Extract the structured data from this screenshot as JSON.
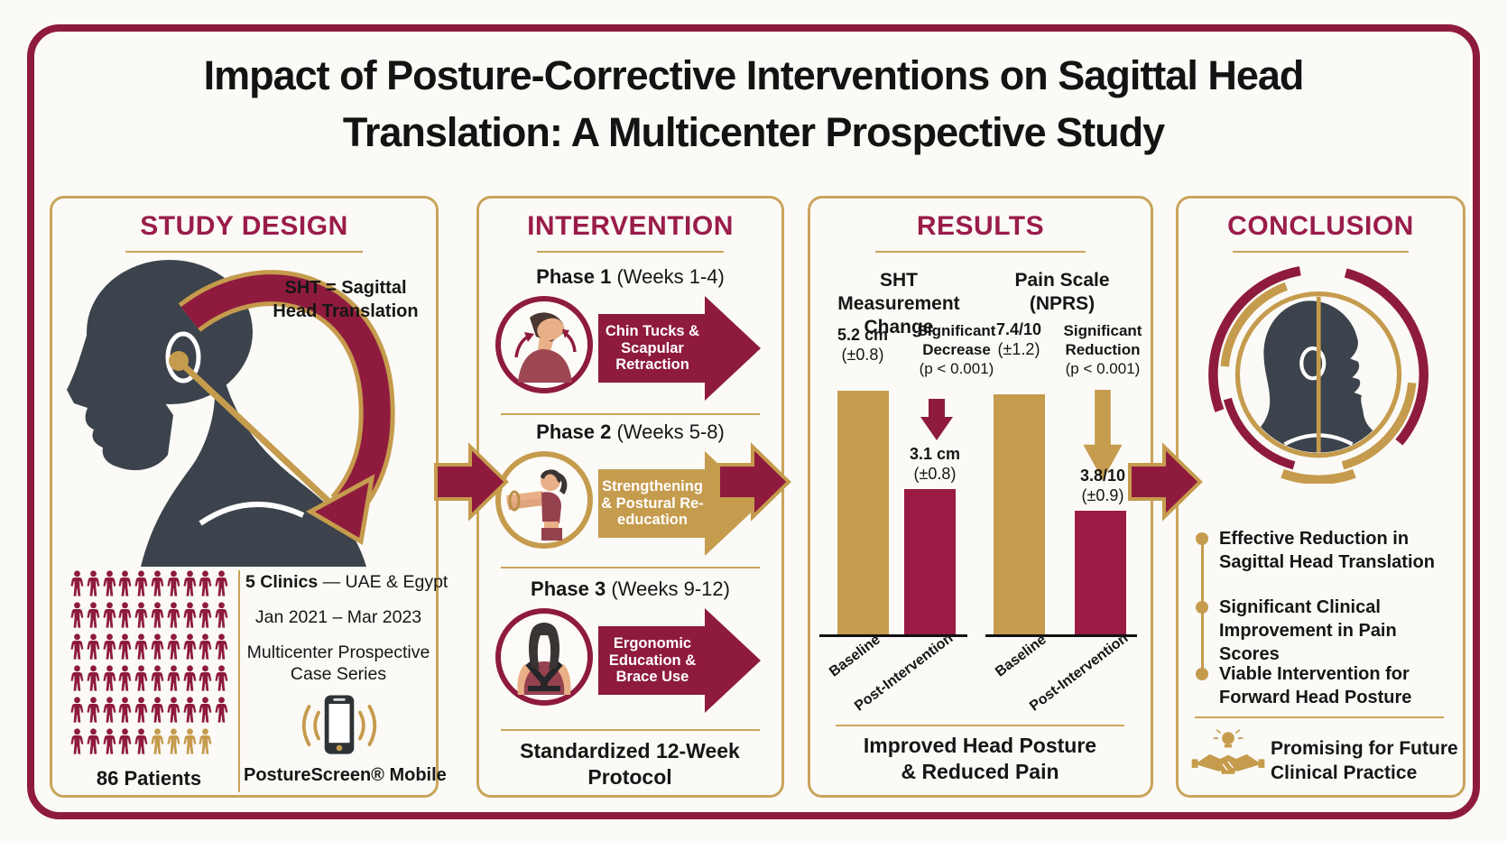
{
  "page": {
    "title_line1": "Impact of Posture-Corrective Interventions on Sagittal Head",
    "title_line2": "Translation: A Multicenter Prospective Study"
  },
  "colors": {
    "maroon": "#8E1B3E",
    "maroon_header": "#9A1C4B",
    "gold": "#C59B4D",
    "slate": "#3C434C",
    "background": "#FBFAF6"
  },
  "study_design": {
    "header": "STUDY DESIGN",
    "sht_definition": "SHT = Sagittal Head Translation",
    "patients_count_label": "86 Patients",
    "pictogram": {
      "rows": 6,
      "cols": 10,
      "last_row_icons": 9,
      "gold_icons_in_last_row": 4
    },
    "fact_clinics_bold": "5 Clinics",
    "fact_clinics_rest": " — UAE & Egypt",
    "fact_dates": "Jan 2021 – Mar 2023",
    "fact_design": "Multicenter Prospective Case Series",
    "app_name": "PostureScreen® Mobile"
  },
  "intervention": {
    "header": "INTERVENTION",
    "phases": [
      {
        "name": "Phase 1",
        "weeks": "(Weeks 1-4)",
        "label": "Chin Tucks & Scapular Retraction",
        "color": "maroon"
      },
      {
        "name": "Phase 2",
        "weeks": "(Weeks 5-8)",
        "label": "Strengthening & Postural Re-education",
        "color": "gold"
      },
      {
        "name": "Phase 3",
        "weeks": "(Weeks 9-12)",
        "label": "Ergonomic Education & Brace Use",
        "color": "maroon"
      }
    ],
    "footer": "Standardized 12-Week Protocol"
  },
  "results": {
    "header": "RESULTS",
    "footer": "Improved Head Posture & Reduced Pain"
  },
  "conclusion": {
    "header": "CONCLUSION",
    "bullets": [
      "Effective Reduction in Sagittal Head Translation",
      "Significant Clinical Improvement in Pain Scores",
      "Viable Intervention for Forward Head Posture"
    ],
    "footer": "Promising for Future Clinical Practice"
  },
  "chart_data": [
    {
      "type": "bar",
      "title": "SHT Measurement Change",
      "categories": [
        "Baseline",
        "Post-Intervention"
      ],
      "values": [
        5.2,
        3.1
      ],
      "value_labels": [
        "5.2 cm",
        "3.1 cm"
      ],
      "error_labels": [
        "(±0.8)",
        "(±0.8)"
      ],
      "annotation": "Significant Decrease",
      "annotation_p": "(p < 0.001)",
      "bar_colors": [
        "gold",
        "maroon"
      ],
      "unit": "cm",
      "ylim": [
        0,
        6
      ],
      "legend": "none",
      "grid": false
    },
    {
      "type": "bar",
      "title": "Pain Scale (NPRS)",
      "categories": [
        "Baseline",
        "Post-Intervention"
      ],
      "values": [
        7.4,
        3.8
      ],
      "value_labels": [
        "7.4/10",
        "3.8/10"
      ],
      "error_labels": [
        "(±1.2)",
        "(±0.9)"
      ],
      "annotation": "Significant Reduction",
      "annotation_p": "(p < 0.001)",
      "bar_colors": [
        "gold",
        "maroon"
      ],
      "unit": "NPRS score",
      "ylim": [
        0,
        8
      ],
      "legend": "none",
      "grid": false
    }
  ]
}
